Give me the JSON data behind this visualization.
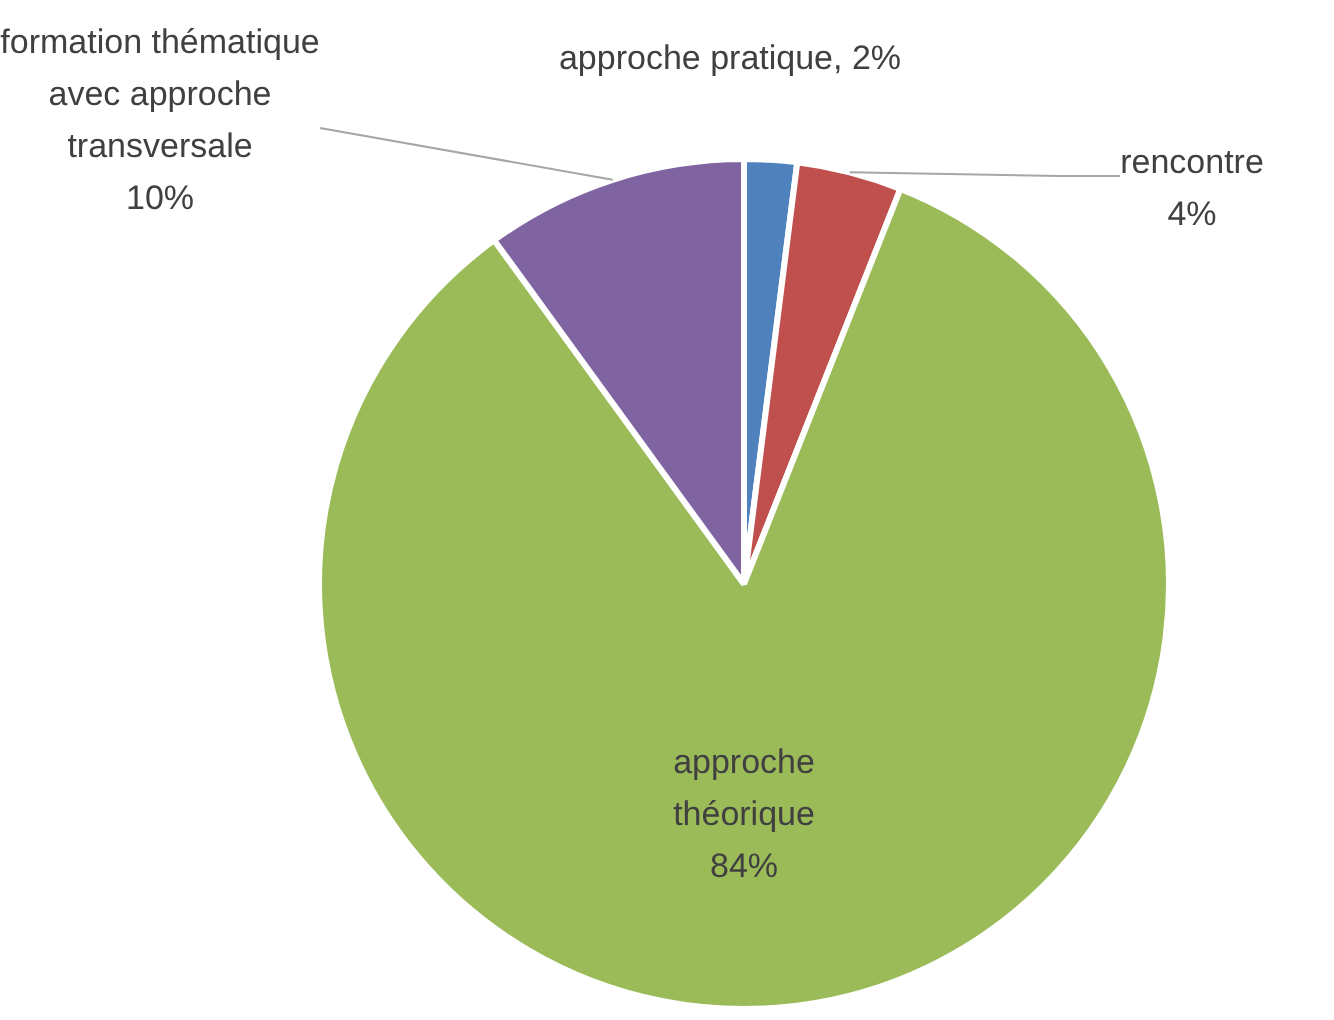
{
  "chart_data": {
    "type": "pie",
    "categories": [
      "approche pratique",
      "rencontre",
      "approche théorique",
      "formation thématique avec approche transversale"
    ],
    "values": [
      2,
      4,
      84,
      10
    ],
    "value_labels": [
      "2%",
      "4%",
      "84%",
      "10%"
    ],
    "colors": [
      "#4f81bd",
      "#c0504d",
      "#9bbb59",
      "#8064a2"
    ],
    "legend": false
  }
}
